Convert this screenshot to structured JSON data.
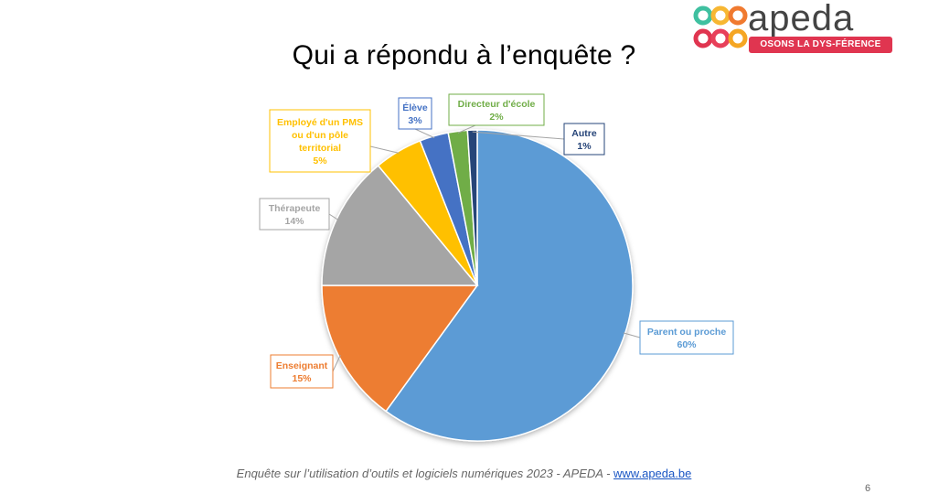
{
  "slide": {
    "title": "Qui a répondu à l’enquête ?",
    "footer_text": "Enquête sur l’utilisation d’outils et logiciels numériques 2023 - APEDA  - ",
    "footer_link": "www.apeda.be",
    "page_number": "6"
  },
  "logo": {
    "word": "apeda",
    "tagline": "OSONS LA DYS-FÉRENCE",
    "dot_colors": [
      "#3fc0a0",
      "#f7b733",
      "#f07a30",
      "#e03550",
      "#e8405a",
      "#f5a623"
    ]
  },
  "chart_data": {
    "type": "pie",
    "title": "",
    "start": "12 o'clock, clockwise",
    "slices": [
      {
        "label": "Parent ou proche",
        "value": 60,
        "display": "60%",
        "color": "#5b9bd5"
      },
      {
        "label": "Enseignant",
        "value": 15,
        "display": "15%",
        "color": "#ed7d31"
      },
      {
        "label": "Thérapeute",
        "value": 14,
        "display": "14%",
        "color": "#a5a5a5"
      },
      {
        "label": "Employé d'un PMS ou d'un pôle territorial",
        "value": 5,
        "display": "5%",
        "color": "#ffc000"
      },
      {
        "label": "Élève",
        "value": 3,
        "display": "3%",
        "color": "#4472c4"
      },
      {
        "label": "Directeur d'école",
        "value": 2,
        "display": "2%",
        "color": "#70ad47"
      },
      {
        "label": "Autre",
        "value": 1,
        "display": "1%",
        "color": "#264478"
      }
    ]
  }
}
